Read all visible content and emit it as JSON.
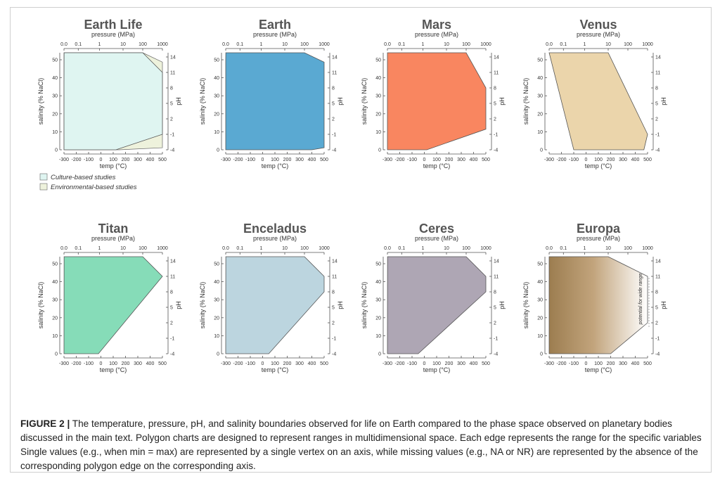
{
  "caption": {
    "label": "FIGURE 2 |",
    "text": " The temperature, pressure, pH, and salinity boundaries observed for life on Earth compared to the phase space observed on planetary bodies discussed in the main text. Polygon charts are designed to represent ranges in multidimensional space. Each edge represents the range for the specific variables Single values (e.g., when min = max) are represented by a single vertex on an axis, while missing values (e.g., NA or NR) are represented by the absence of the corresponding polygon edge on the corresponding axis."
  },
  "axes": {
    "pressure_label": "pressure (MPa)",
    "temp_label": "temp (°C)",
    "salinity_label": "salinity (% NaCl)",
    "ph_label": "pH",
    "pressure_ticks": [
      "0.0",
      "0.1",
      "1",
      "10",
      "100",
      "1000"
    ],
    "temp_ticks": [
      "-300",
      "-200",
      "-100",
      "0",
      "100",
      "200",
      "300",
      "400",
      "500"
    ],
    "salinity_ticks": [
      "0",
      "10",
      "20",
      "30",
      "40",
      "50"
    ],
    "ph_ticks": [
      "-4",
      "-1",
      "2",
      "5",
      "8",
      "11",
      "14"
    ]
  },
  "legend": {
    "culture": {
      "label": "Culture-based studies",
      "color": "#dff5f1"
    },
    "environmental": {
      "label": "Environmental-based studies",
      "color": "#eef2dc"
    }
  },
  "europa_annotation": "potential for wide range",
  "chart_data": [
    {
      "type": "polygon",
      "title": "Earth Life",
      "color": "#dff5f1",
      "ranges": {
        "pressure_MPa": [
          0.1,
          100
        ],
        "pH": [
          -1,
          11
        ],
        "temp_C": [
          -40,
          122
        ],
        "salinity_pct_NaCl": [
          0,
          37
        ]
      },
      "environmental_range": {
        "pressure_MPa": [
          0.0,
          100
        ],
        "pH": [
          -3.6,
          13
        ],
        "temp_C": [
          -40,
          150
        ],
        "salinity_pct_NaCl": [
          0,
          50
        ]
      }
    },
    {
      "type": "polygon",
      "title": "Earth",
      "color": "#5aa9d2",
      "ranges": {
        "pressure_MPa": [
          0.1,
          100
        ],
        "pH": [
          -3.6,
          13
        ],
        "temp_C": [
          -200,
          400
        ],
        "salinity_pct_NaCl": [
          0,
          50
        ]
      }
    },
    {
      "type": "polygon",
      "title": "Mars",
      "color": "#f98660",
      "ranges": {
        "pressure_MPa": [
          0.0,
          100
        ],
        "pH": [
          0,
          8
        ],
        "temp_C": [
          -150,
          20
        ],
        "salinity_pct_NaCl": [
          0,
          37
        ]
      }
    },
    {
      "type": "polygon",
      "title": "Venus",
      "color": "#ebd5ab",
      "ranges": {
        "pressure_MPa": [
          0.0,
          10
        ],
        "pH": [
          -1,
          -1
        ],
        "temp_C": [
          -100,
          470
        ],
        "salinity_pct_NaCl": [
          null,
          null
        ]
      }
    },
    {
      "type": "polygon",
      "title": "Titan",
      "color": "#86dcb8",
      "ranges": {
        "pressure_MPa": [
          0.1,
          100
        ],
        "pH": [
          11,
          11
        ],
        "temp_C": [
          -200,
          -20
        ],
        "salinity_pct_NaCl": [
          0,
          5
        ]
      }
    },
    {
      "type": "polygon",
      "title": "Enceladus",
      "color": "#bcd5df",
      "ranges": {
        "pressure_MPa": [
          0.1,
          100
        ],
        "pH": [
          8,
          11
        ],
        "temp_C": [
          -200,
          50
        ],
        "salinity_pct_NaCl": [
          0,
          5
        ]
      }
    },
    {
      "type": "polygon",
      "title": "Ceres",
      "color": "#aea6b4",
      "ranges": {
        "pressure_MPa": [
          0.1,
          100
        ],
        "pH": [
          8,
          11
        ],
        "temp_C": [
          -180,
          -50
        ],
        "salinity_pct_NaCl": [
          0,
          10
        ]
      }
    },
    {
      "type": "polygon",
      "title": "Europa",
      "color": "#a88a5d",
      "ranges": {
        "pressure_MPa": [
          0.0,
          10
        ],
        "pH": [
          2,
          11
        ],
        "temp_C": [
          -200,
          200
        ],
        "salinity_pct_NaCl": [
          0,
          5
        ]
      }
    }
  ]
}
